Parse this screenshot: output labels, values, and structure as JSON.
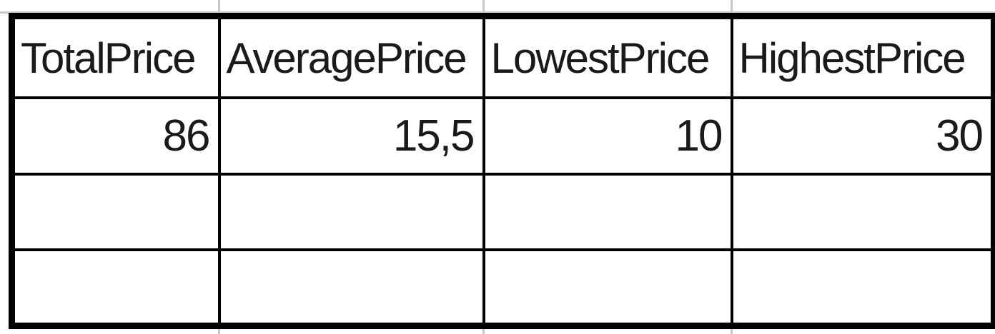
{
  "table": {
    "headers": [
      "TotalPrice",
      "AveragePrice",
      "LowestPrice",
      "HighestPrice"
    ],
    "rows": [
      [
        "86",
        "15,5",
        "10",
        "30"
      ],
      [
        "",
        "",
        "",
        ""
      ],
      [
        "",
        "",
        "",
        ""
      ]
    ]
  },
  "colors": {
    "border": "#000000",
    "gridline": "#c8c8c8",
    "text": "#1a1a1a"
  }
}
